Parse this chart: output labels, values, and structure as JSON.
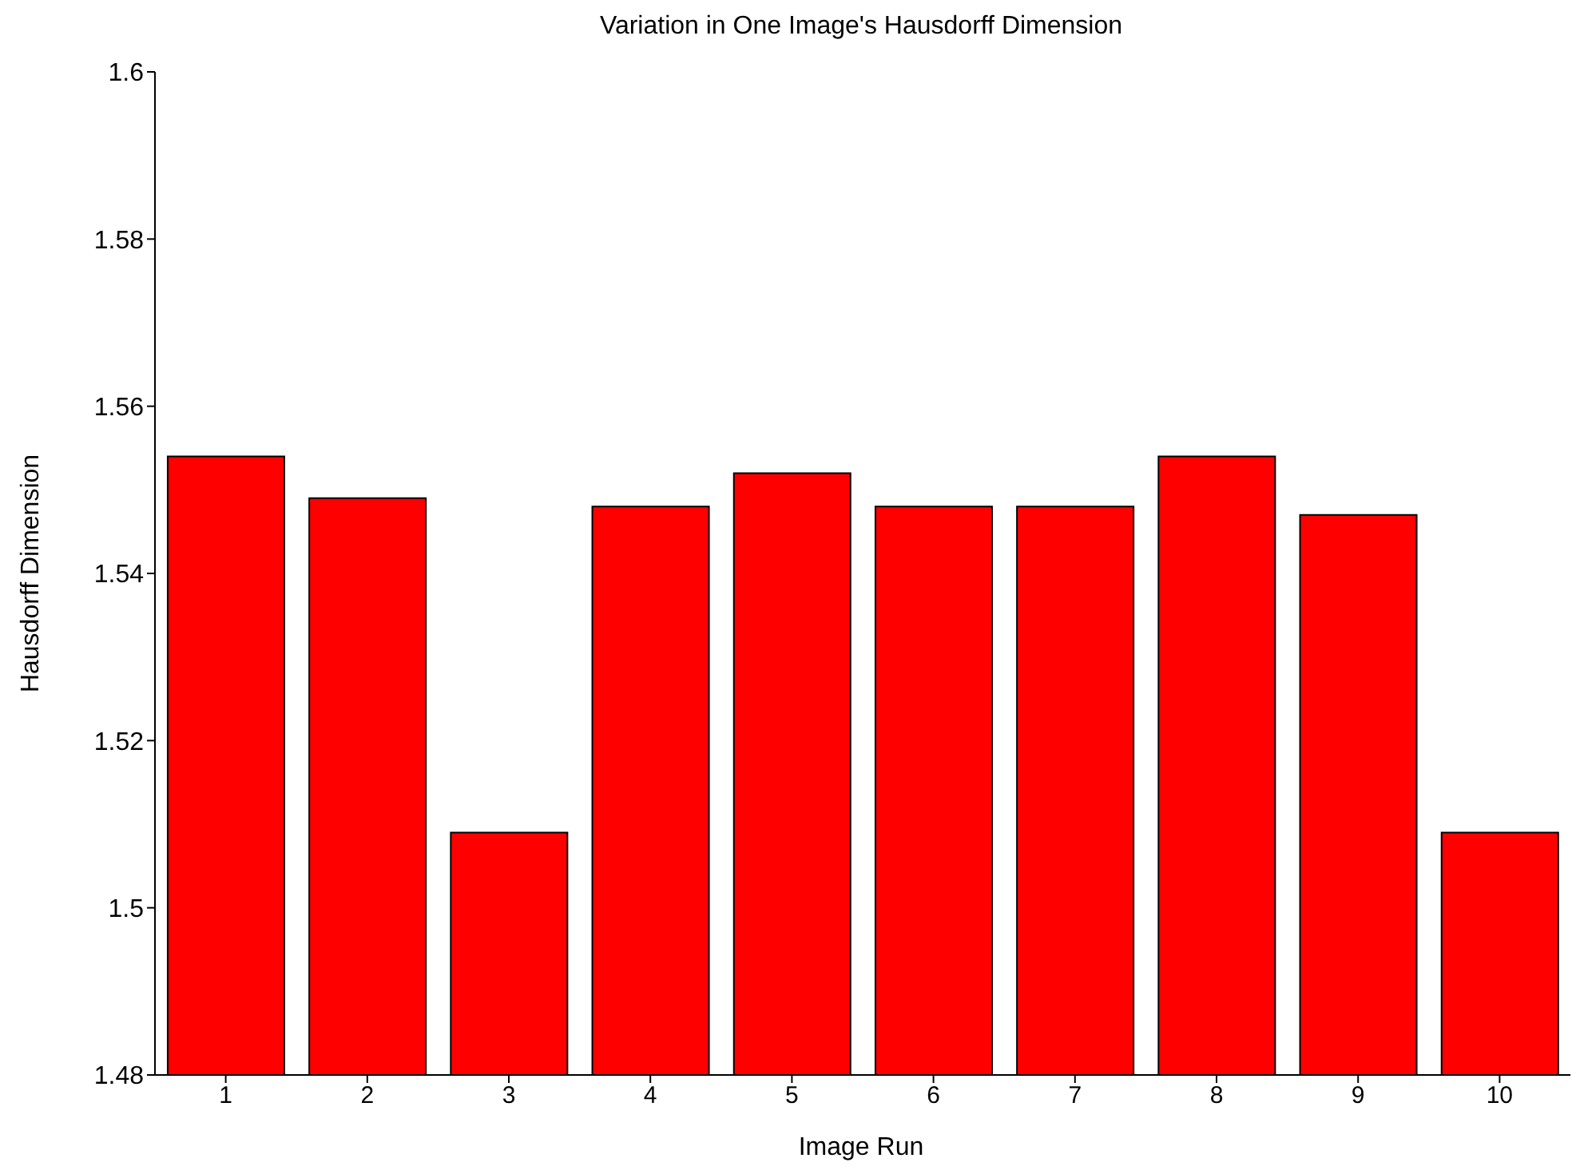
{
  "chart_data": {
    "type": "bar",
    "title": "Variation in One Image's Hausdorff Dimension",
    "xlabel": "Image Run",
    "ylabel": "Hausdorff Dimension",
    "categories": [
      "1",
      "2",
      "3",
      "4",
      "5",
      "6",
      "7",
      "8",
      "9",
      "10"
    ],
    "values": [
      1.554,
      1.549,
      1.509,
      1.548,
      1.552,
      1.548,
      1.548,
      1.554,
      1.547,
      1.509
    ],
    "color": "#ff0000",
    "ylim": [
      1.48,
      1.6
    ],
    "yticks": [
      1.48,
      1.5,
      1.52,
      1.54,
      1.56,
      1.58,
      1.6
    ],
    "grid": false,
    "legend": false
  }
}
